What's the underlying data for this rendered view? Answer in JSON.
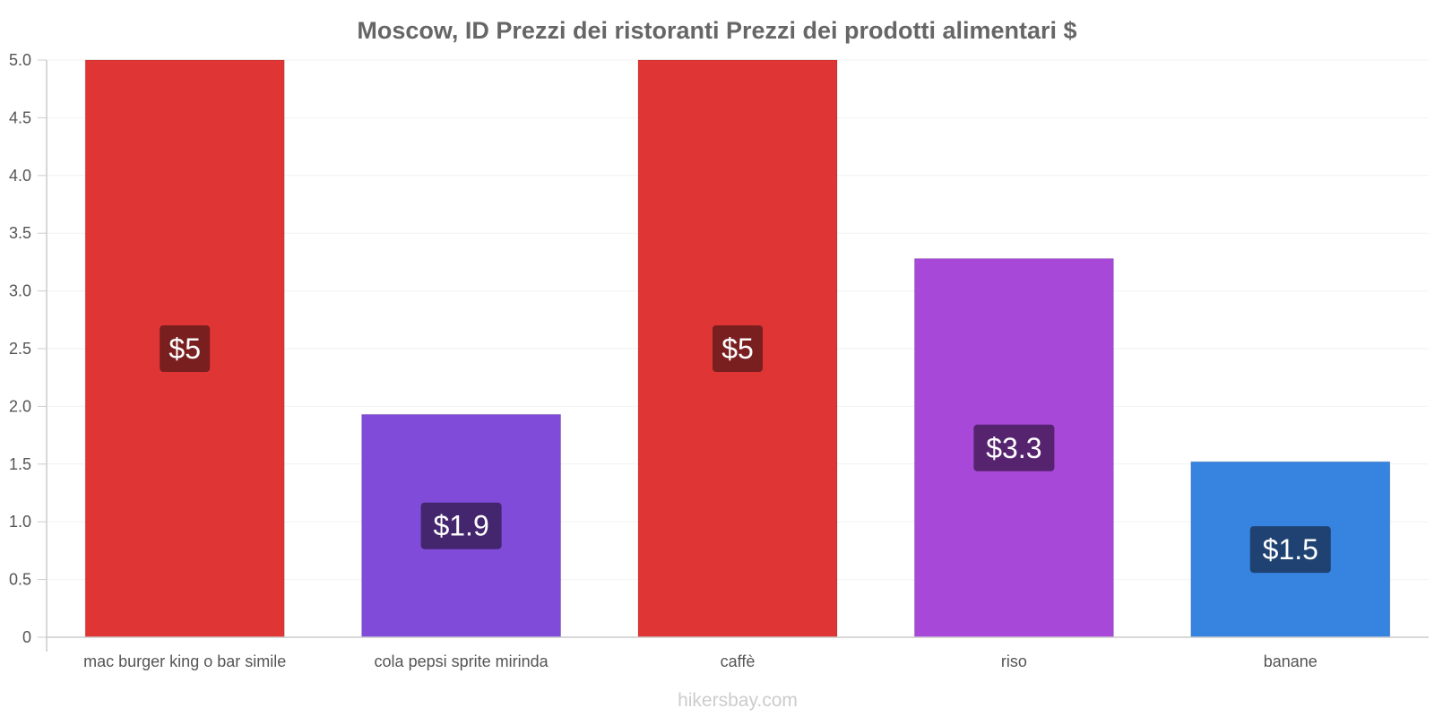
{
  "chart_data": {
    "type": "bar",
    "title": "Moscow, ID Prezzi dei ristoranti Prezzi dei prodotti alimentari $",
    "categories": [
      "mac burger king o bar simile",
      "cola pepsi sprite mirinda",
      "caffè",
      "riso",
      "banane"
    ],
    "values": [
      5.0,
      1.93,
      5.0,
      3.28,
      1.52
    ],
    "value_labels": [
      "$5",
      "$1.9",
      "$5",
      "$3.3",
      "$1.5"
    ],
    "colors": [
      "#e03535",
      "#814bd9",
      "#e03535",
      "#a748d9",
      "#3683e0"
    ],
    "label_bg_colors": [
      "#7a1f1f",
      "#44266f",
      "#7a1f1f",
      "#56246f",
      "#1f4272"
    ],
    "ylim": [
      0,
      5
    ],
    "yticks": [
      "0",
      "0.5",
      "1.0",
      "1.5",
      "2.0",
      "2.5",
      "3.0",
      "3.5",
      "4.0",
      "4.5",
      "5.0"
    ],
    "xlabel": "",
    "ylabel": "",
    "grid": true,
    "legend": "none"
  },
  "footer": {
    "credit": "hikersbay.com"
  }
}
